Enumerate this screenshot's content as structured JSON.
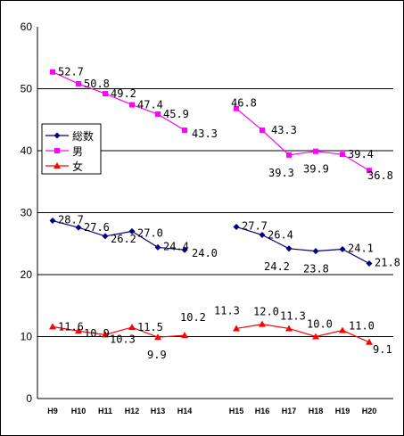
{
  "chart_data": {
    "type": "line",
    "categories": [
      "H9",
      "H10",
      "H11",
      "H12",
      "H13",
      "H14",
      "H15",
      "H16",
      "H17",
      "H18",
      "H19",
      "H20"
    ],
    "ylim": [
      0,
      60
    ],
    "yticks": [
      "0",
      "10",
      "20",
      "30",
      "40",
      "50",
      "60"
    ],
    "grid": true,
    "gap_between": [
      "H14",
      "H15"
    ],
    "legend_position": "left",
    "series": [
      {
        "name": "総数",
        "color": "#000080",
        "marker": "diamond",
        "values": [
          28.7,
          27.6,
          26.2,
          27.0,
          24.4,
          24.0,
          27.7,
          26.4,
          24.2,
          23.8,
          24.1,
          21.8
        ],
        "labels": [
          "28.7",
          "27.6",
          "26.2",
          "27.0",
          "24.4",
          "24.0",
          "27.7",
          "26.4",
          "24.2",
          "23.8",
          "24.1",
          "21.8"
        ]
      },
      {
        "name": "男",
        "color": "#ff00ff",
        "marker": "square",
        "values": [
          52.7,
          50.8,
          49.2,
          47.4,
          45.9,
          43.3,
          46.8,
          43.3,
          39.3,
          39.9,
          39.4,
          36.8
        ],
        "labels": [
          "52.7",
          "50.8",
          "49.2",
          "47.4",
          "45.9",
          "43.3",
          "46.8",
          "43.3",
          "39.3",
          "39.9",
          "39.4",
          "36.8"
        ]
      },
      {
        "name": "女",
        "color": "#ff0000",
        "marker": "triangle",
        "values": [
          11.6,
          10.9,
          10.3,
          11.5,
          9.9,
          10.2,
          11.3,
          12.0,
          11.3,
          10.0,
          11.0,
          9.1
        ],
        "labels": [
          "11.6",
          "10.9",
          "10.3",
          "11.5",
          "9.9",
          "10.2",
          "11.3",
          "12.0",
          "11.3",
          "10.0",
          "11.0",
          "9.1"
        ]
      }
    ]
  }
}
